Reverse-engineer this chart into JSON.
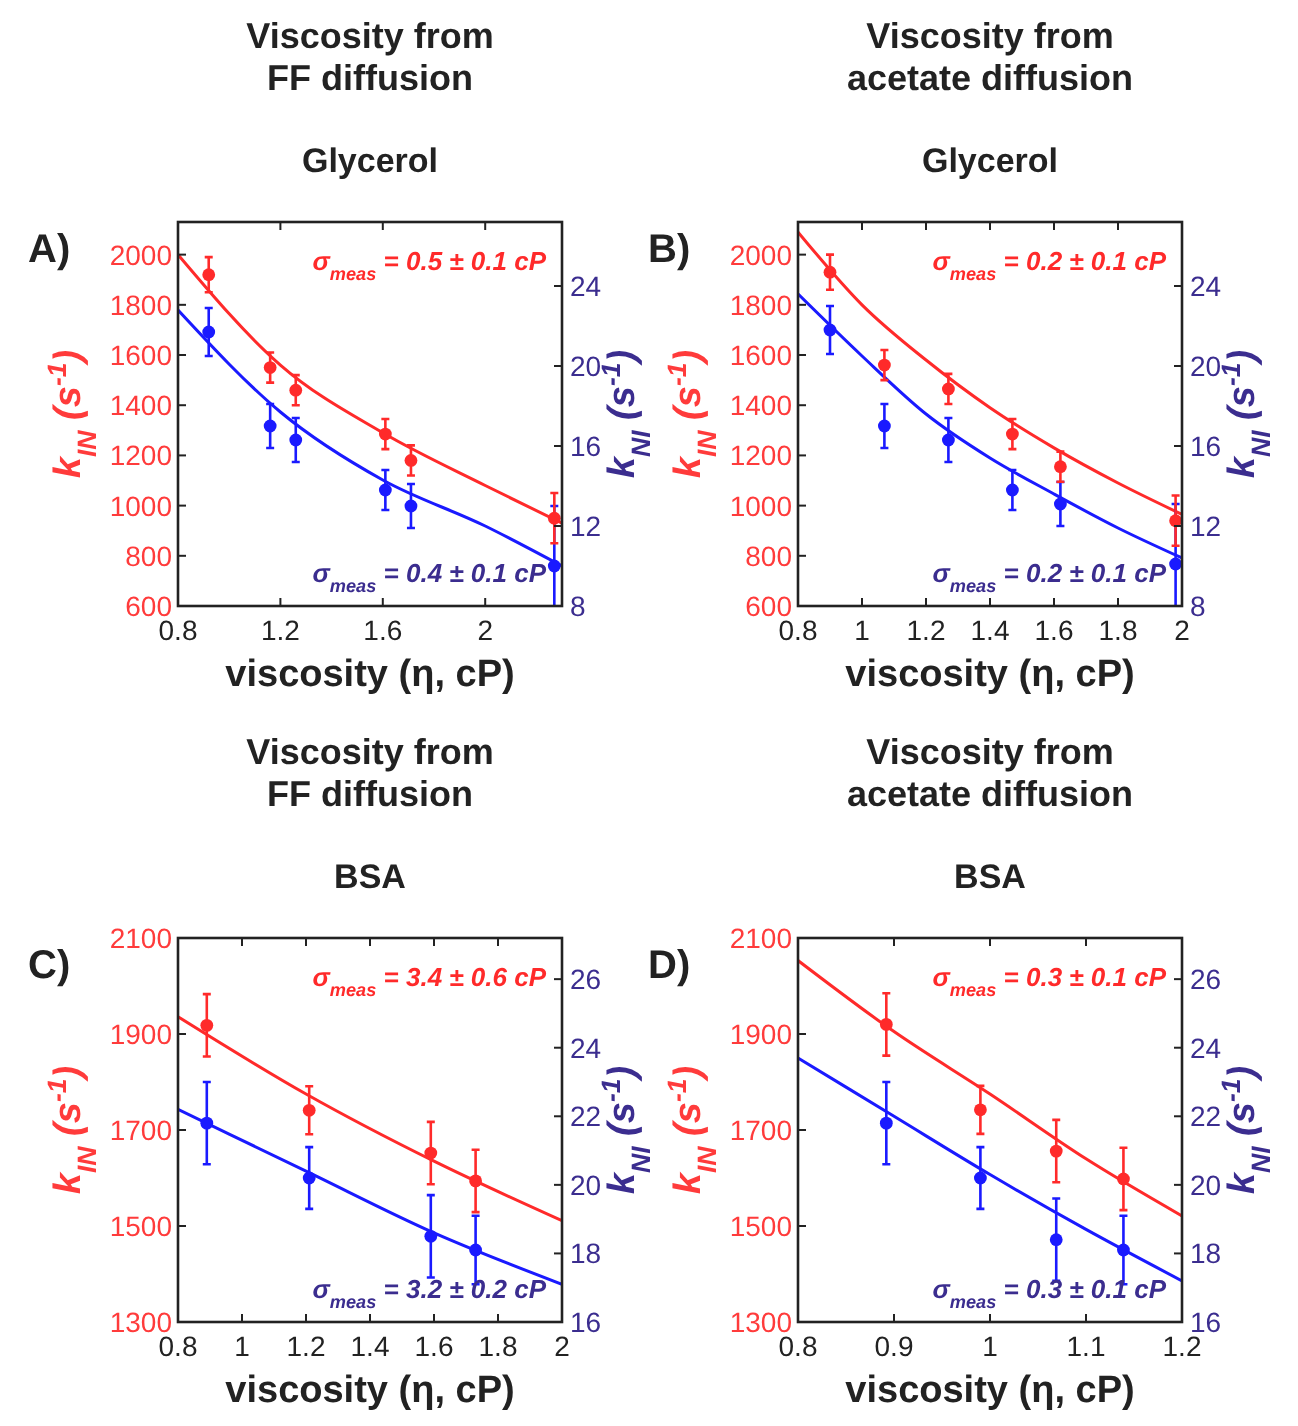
{
  "chart_data": [
    {
      "type": "scatter",
      "title": "Viscosity from FF diffusion",
      "subtitle": "Glycerol",
      "xlabel": "viscosity (η, cP)",
      "ylabel": "k$_{IN}$ (s$^{-1}$)",
      "y2label": "k$_{NI}$ (s$^{-1}$)",
      "annotations": [
        "A)",
        "σ$_{meas}$ = 0.5 ± 0.1 cP",
        "σ$_{meas}$ = 0.4 ± 0.1 cP"
      ],
      "xlim": [
        0.8,
        2.3
      ],
      "xticks": [
        0.8,
        1.2,
        1.6,
        2
      ],
      "ylim": [
        600,
        2130
      ],
      "yticks": [
        600,
        800,
        1000,
        1200,
        1400,
        1600,
        1800,
        2000
      ],
      "y2lim": [
        8,
        27.2
      ],
      "y2ticks": [
        8,
        12,
        16,
        20,
        24
      ],
      "marker": "circle",
      "series": [
        {
          "color": "#ff2a2a",
          "x": [
            0.92,
            1.16,
            1.26,
            1.61,
            1.71,
            2.27
          ],
          "values": [
            1920,
            1550,
            1460,
            1285,
            1180,
            950
          ],
          "errors": [
            70,
            60,
            60,
            60,
            60,
            100
          ]
        },
        {
          "type": "line",
          "marker": "none",
          "color": "#ff2a2a",
          "x": [
            0.8,
            1.2,
            1.6,
            2.0,
            2.3
          ],
          "values": [
            2000,
            1560,
            1290,
            1080,
            930
          ]
        },
        {
          "axis": "y2",
          "color": "#1a1aff",
          "x": [
            0.92,
            1.16,
            1.26,
            1.61,
            1.71,
            2.27
          ],
          "values": [
            21.7,
            17.0,
            16.3,
            13.8,
            13.0,
            10.0
          ],
          "errors": [
            1.2,
            1.1,
            1.1,
            1.0,
            1.1,
            3
          ]
        },
        {
          "type": "line",
          "marker": "none",
          "axis": "y2",
          "color": "#1a1aff",
          "x": [
            0.8,
            1.2,
            1.6,
            2.0,
            2.3
          ],
          "values": [
            22.8,
            17.7,
            14.3,
            12.0,
            10.0
          ]
        }
      ]
    },
    {
      "type": "scatter",
      "title": "Viscosity from acetate diffusion",
      "subtitle": "Glycerol",
      "xlabel": "viscosity (η, cP)",
      "ylabel": "k$_{IN}$ (s$^{-1}$)",
      "y2label": "k$_{NI}$ (s$^{-1}$)",
      "annotations": [
        "B)",
        "σ$_{meas}$ = 0.2 ± 0.1 cP",
        "σ$_{meas}$ = 0.2 ± 0.1 cP"
      ],
      "xlim": [
        0.8,
        2
      ],
      "xticks": [
        0.8,
        1,
        1.2,
        1.4,
        1.6,
        1.8,
        2
      ],
      "ylim": [
        600,
        2130
      ],
      "yticks": [
        600,
        800,
        1000,
        1200,
        1400,
        1600,
        1800,
        2000
      ],
      "y2lim": [
        8,
        27.2
      ],
      "y2ticks": [
        8,
        12,
        16,
        20,
        24
      ],
      "marker": "circle",
      "series": [
        {
          "color": "#ff2a2a",
          "x": [
            0.9,
            1.07,
            1.27,
            1.47,
            1.62,
            1.98
          ],
          "values": [
            1930,
            1560,
            1465,
            1285,
            1155,
            940
          ],
          "errors": [
            70,
            60,
            60,
            60,
            60,
            100
          ]
        },
        {
          "type": "line",
          "marker": "none",
          "color": "#ff2a2a",
          "x": [
            0.8,
            1.0,
            1.2,
            1.4,
            1.6,
            1.8,
            2.0
          ],
          "values": [
            2090,
            1800,
            1580,
            1390,
            1230,
            1090,
            965
          ]
        },
        {
          "axis": "y2",
          "color": "#1a1aff",
          "x": [
            0.9,
            1.07,
            1.27,
            1.47,
            1.62,
            1.98
          ],
          "values": [
            21.8,
            17.0,
            16.3,
            13.8,
            13.1,
            10.1
          ],
          "errors": [
            1.2,
            1.1,
            1.1,
            1.0,
            1.1,
            3
          ]
        },
        {
          "type": "line",
          "marker": "none",
          "axis": "y2",
          "color": "#1a1aff",
          "x": [
            0.8,
            1.0,
            1.2,
            1.4,
            1.6,
            1.8,
            2.0
          ],
          "values": [
            23.6,
            20.5,
            17.6,
            15.4,
            13.6,
            11.9,
            10.4
          ]
        }
      ]
    },
    {
      "type": "scatter",
      "title": "Viscosity from FF diffusion",
      "subtitle": "BSA",
      "xlabel": "viscosity (η, cP)",
      "ylabel": "k$_{IN}$ (s$^{-1}$)",
      "y2label": "k$_{NI}$ (s$^{-1}$)",
      "annotations": [
        "C)",
        "σ$_{meas}$ = 3.4 ± 0.6 cP",
        "σ$_{meas}$ = 3.2 ± 0.2 cP"
      ],
      "xlim": [
        0.8,
        2
      ],
      "xticks": [
        0.8,
        1,
        1.2,
        1.4,
        1.6,
        1.8,
        2
      ],
      "ylim": [
        1300,
        2100
      ],
      "yticks": [
        1300,
        1500,
        1700,
        1900,
        2100
      ],
      "y2lim": [
        16,
        27.2
      ],
      "y2ticks": [
        16,
        18,
        20,
        22,
        24,
        26
      ],
      "marker": "circle",
      "series": [
        {
          "color": "#ff2a2a",
          "x": [
            0.89,
            1.21,
            1.59,
            1.73
          ],
          "values": [
            1918,
            1741,
            1652,
            1594
          ],
          "errors": [
            65,
            50,
            65,
            65
          ]
        },
        {
          "type": "line",
          "marker": "none",
          "color": "#ff2a2a",
          "x": [
            0.8,
            1.2,
            1.6,
            2.0
          ],
          "values": [
            1936,
            1775,
            1635,
            1511
          ]
        },
        {
          "axis": "y2",
          "color": "#1a1aff",
          "x": [
            0.89,
            1.21,
            1.59,
            1.73
          ],
          "values": [
            21.8,
            20.2,
            18.5,
            18.1
          ],
          "errors": [
            1.2,
            0.9,
            1.2,
            1.0
          ]
        },
        {
          "type": "line",
          "marker": "none",
          "axis": "y2",
          "color": "#1a1aff",
          "x": [
            0.8,
            1.2,
            1.6,
            2.0
          ],
          "values": [
            22.2,
            20.4,
            18.6,
            17.1
          ]
        }
      ]
    },
    {
      "type": "scatter",
      "title": "Viscosity from acetate diffusion",
      "subtitle": "BSA",
      "xlabel": "viscosity (η, cP)",
      "ylabel": "k$_{IN}$ (s$^{-1}$)",
      "y2label": "k$_{NI}$ (s$^{-1}$)",
      "annotations": [
        "D)",
        "σ$_{meas}$ = 0.3 ± 0.1 cP",
        "σ$_{meas}$ = 0.3 ± 0.1 cP"
      ],
      "xlim": [
        0.8,
        1.2
      ],
      "xticks": [
        0.8,
        0.9,
        1,
        1.1,
        1.2
      ],
      "ylim": [
        1300,
        2100
      ],
      "yticks": [
        1300,
        1500,
        1700,
        1900,
        2100
      ],
      "y2lim": [
        16,
        27.2
      ],
      "y2ticks": [
        16,
        18,
        20,
        22,
        24,
        26
      ],
      "marker": "circle",
      "series": [
        {
          "color": "#ff2a2a",
          "x": [
            0.892,
            0.99,
            1.069,
            1.139
          ],
          "values": [
            1920,
            1742,
            1656,
            1598
          ],
          "errors": [
            65,
            50,
            65,
            65
          ]
        },
        {
          "type": "line",
          "marker": "none",
          "color": "#ff2a2a",
          "x": [
            0.8,
            0.9,
            1.0,
            1.1,
            1.2
          ],
          "values": [
            2053,
            1905,
            1775,
            1640,
            1521
          ]
        },
        {
          "axis": "y2",
          "color": "#1a1aff",
          "x": [
            0.892,
            0.99,
            1.069,
            1.139
          ],
          "values": [
            21.8,
            20.2,
            18.4,
            18.1
          ],
          "errors": [
            1.2,
            0.9,
            1.2,
            1.0
          ]
        },
        {
          "type": "line",
          "marker": "none",
          "axis": "y2",
          "color": "#1a1aff",
          "x": [
            0.8,
            0.9,
            1.0,
            1.1,
            1.2
          ],
          "values": [
            23.7,
            22.0,
            20.3,
            18.7,
            17.2
          ]
        }
      ]
    }
  ]
}
